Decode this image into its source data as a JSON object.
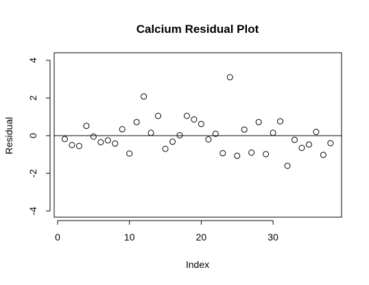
{
  "chart_data": {
    "type": "scatter",
    "title": "Calcium Residual Plot",
    "xlabel": "Index",
    "ylabel": "Residual",
    "xlim": [
      0,
      38
    ],
    "ylim": [
      -4,
      4
    ],
    "x_ticks": [
      0,
      10,
      20,
      30
    ],
    "y_ticks": [
      -4,
      -2,
      0,
      2,
      4
    ],
    "reference_line_y": 0,
    "grid": false,
    "marker": "open-circle",
    "series": [
      {
        "x": [
          1,
          2,
          3,
          4,
          5,
          6,
          7,
          8,
          9,
          10,
          11,
          12,
          13,
          14,
          15,
          16,
          17,
          18,
          19,
          20,
          21,
          22,
          23,
          24,
          25,
          26,
          27,
          28,
          29,
          30,
          31,
          32,
          33,
          34,
          35,
          36,
          37,
          38
        ],
        "y": [
          -0.18,
          -0.5,
          -0.55,
          0.52,
          -0.05,
          -0.35,
          -0.25,
          -0.42,
          0.34,
          -0.95,
          0.72,
          2.08,
          0.15,
          1.05,
          -0.7,
          -0.32,
          0.02,
          1.05,
          0.86,
          0.62,
          -0.2,
          0.1,
          -0.93,
          3.1,
          -1.07,
          0.32,
          -0.9,
          0.72,
          -0.98,
          0.15,
          0.76,
          -1.6,
          -0.22,
          -0.65,
          -0.47,
          0.2,
          -1.02,
          -0.4
        ]
      }
    ]
  }
}
